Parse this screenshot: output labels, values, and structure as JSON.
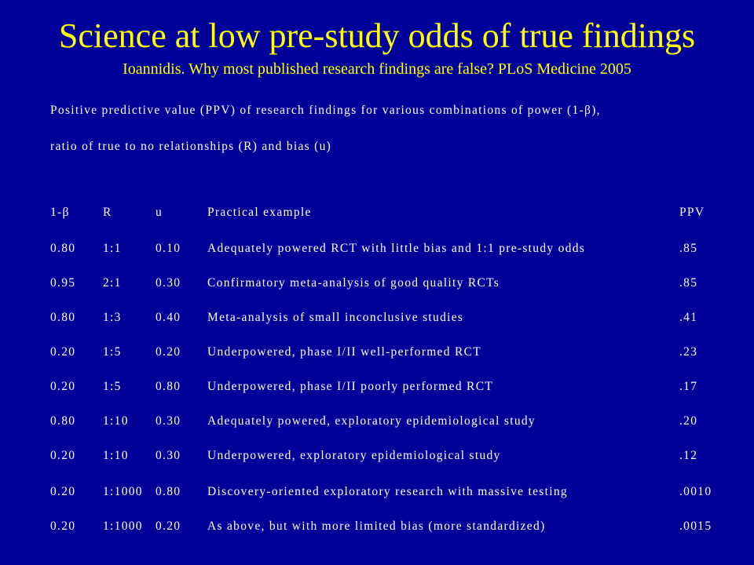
{
  "slide": {
    "title": "Science at low pre-study odds of true findings",
    "subtitle": "Ioannidis. Why most published research findings are false? PLoS Medicine 2005",
    "description_line1": "Positive predictive value (PPV) of research findings for various combinations of power (1-β),",
    "description_line2": "ratio of true to no relationships (R) and bias (u)",
    "colors": {
      "background": "#000099",
      "title": "#FFFF00",
      "text": "#FFFFFF"
    }
  },
  "table": {
    "headers": {
      "power": "1-β",
      "r": "R",
      "u": "u",
      "example": "Practical example",
      "ppv": "PPV"
    },
    "rows": [
      {
        "power": "0.80",
        "r": "1:1",
        "u": "0.10",
        "example": "Adequately powered RCT with little bias and 1:1 pre-study odds",
        "ppv": ".85"
      },
      {
        "power": "0.95",
        "r": "2:1",
        "u": "0.30",
        "example": "Confirmatory meta-analysis of good quality RCTs",
        "ppv": ".85"
      },
      {
        "power": "0.80",
        "r": "1:3",
        "u": "0.40",
        "example": "Meta-analysis of small inconclusive studies",
        "ppv": ".41"
      },
      {
        "power": "0.20",
        "r": "1:5",
        "u": "0.20",
        "example": "Underpowered, phase I/II well-performed RCT",
        "ppv": ".23"
      },
      {
        "power": "0.20",
        "r": "1:5",
        "u": "0.80",
        "example": "Underpowered, phase I/II poorly performed RCT",
        "ppv": ".17"
      },
      {
        "power": "0.80",
        "r": "1:10",
        "u": "0.30",
        "example": "Adequately powered, exploratory epidemiological study",
        "ppv": ".20"
      },
      {
        "power": "0.20",
        "r": "1:10",
        "u": "0.30",
        "example": "Underpowered, exploratory epidemiological study",
        "ppv": ".12"
      },
      {
        "power": "0.20",
        "r": "1:1000",
        "u": "0.80",
        "example": "Discovery-oriented exploratory research with massive testing",
        "ppv": ".0010"
      },
      {
        "power": "0.20",
        "r": "1:1000",
        "u": "0.20",
        "example": "As above, but with more limited bias (more standardized)",
        "ppv": ".0015"
      }
    ]
  }
}
